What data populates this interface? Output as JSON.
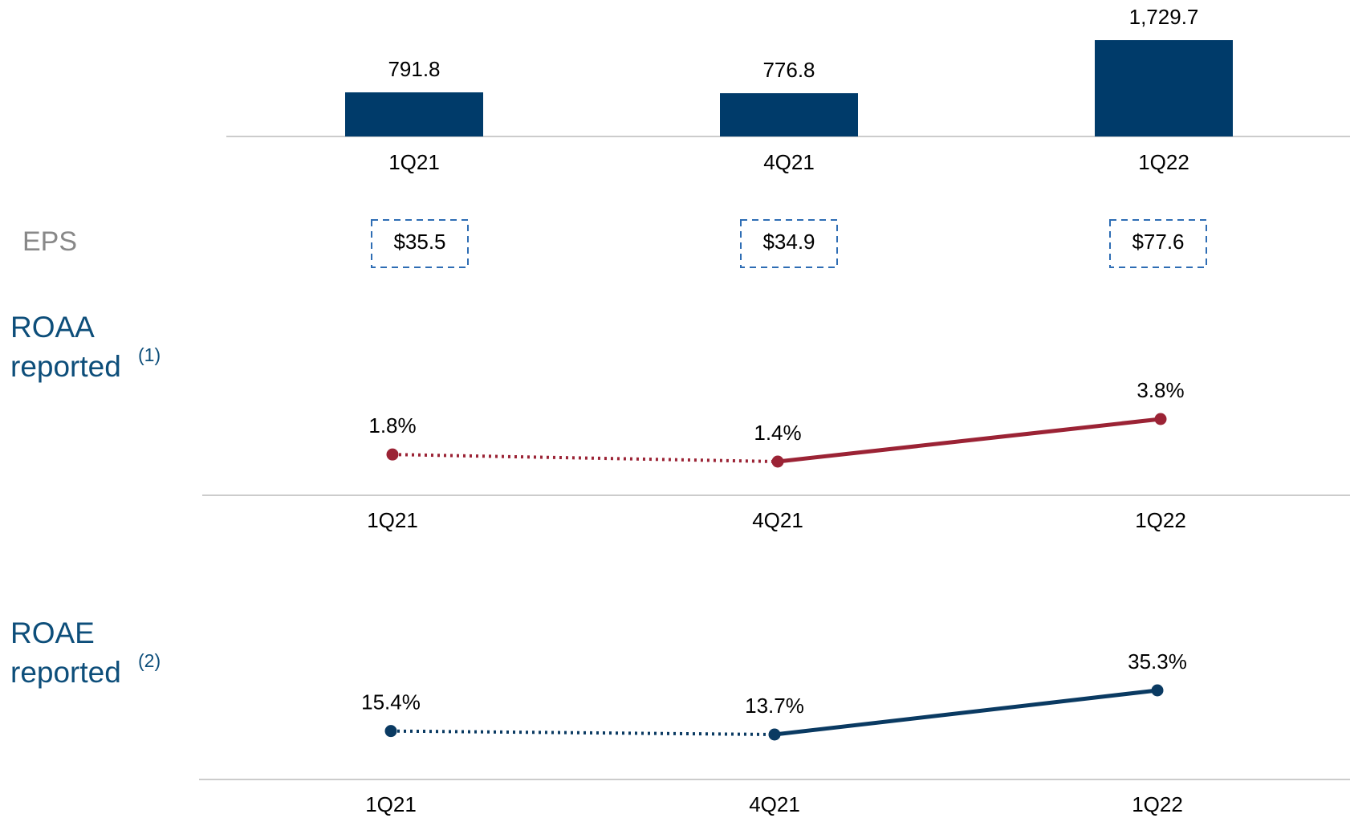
{
  "chart_data": [
    {
      "type": "bar",
      "categories": [
        "1Q21",
        "4Q21",
        "1Q22"
      ],
      "values": [
        791.8,
        776.8,
        1729.7
      ],
      "value_labels": [
        "791.8",
        "776.8",
        "1,729.7"
      ],
      "color": "#003b6a"
    },
    {
      "type": "boxes",
      "title": "EPS",
      "values": [
        35.5,
        34.9,
        77.6
      ],
      "value_labels": [
        "$35.5",
        "$34.9",
        "$77.6"
      ],
      "color": "#2e6db4"
    },
    {
      "type": "line",
      "title": "ROAA",
      "subtitle": "reported",
      "note": "(1)",
      "categories": [
        "1Q21",
        "4Q21",
        "1Q22"
      ],
      "values": [
        1.8,
        1.4,
        3.8
      ],
      "value_labels": [
        "1.8%",
        "1.4%",
        "3.8%"
      ],
      "color": "#9b2335",
      "line_styles": [
        "dotted",
        "solid"
      ]
    },
    {
      "type": "line",
      "title": "ROAE",
      "subtitle": "reported",
      "note": "(2)",
      "categories": [
        "1Q21",
        "4Q21",
        "1Q22"
      ],
      "values": [
        15.4,
        13.7,
        35.3
      ],
      "value_labels": [
        "15.4%",
        "13.7%",
        "35.3%"
      ],
      "color": "#0a3a62",
      "line_styles": [
        "dotted",
        "solid"
      ]
    }
  ]
}
